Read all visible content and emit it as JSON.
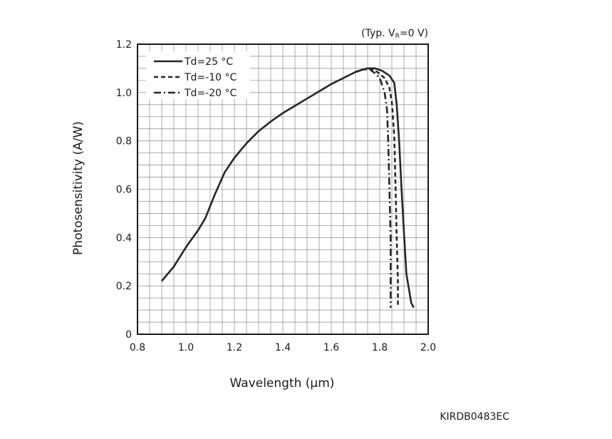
{
  "chart_data": {
    "type": "line",
    "condition_prefix": "(Typ. V",
    "condition_sub": "R",
    "condition_suffix": "=0 V)",
    "xlabel": "Wavelength (μm)",
    "ylabel": "Photosensitivity (A/W)",
    "xlim": [
      0.8,
      2.0
    ],
    "ylim": [
      0,
      1.2
    ],
    "x_ticks": [
      "0.8",
      "1.0",
      "1.2",
      "1.4",
      "1.6",
      "1.8",
      "2.0"
    ],
    "y_ticks": [
      "0",
      "0.2",
      "0.4",
      "0.6",
      "0.8",
      "1.0",
      "1.2"
    ],
    "grid": true,
    "legend_position": "top-left",
    "code": "KIRDB0483EC",
    "series": [
      {
        "name": "Td=25 °C",
        "style": "solid",
        "points": [
          [
            0.9,
            0.22
          ],
          [
            0.95,
            0.28
          ],
          [
            1.0,
            0.36
          ],
          [
            1.05,
            0.43
          ],
          [
            1.08,
            0.48
          ],
          [
            1.12,
            0.58
          ],
          [
            1.16,
            0.67
          ],
          [
            1.2,
            0.73
          ],
          [
            1.25,
            0.79
          ],
          [
            1.3,
            0.84
          ],
          [
            1.35,
            0.88
          ],
          [
            1.4,
            0.915
          ],
          [
            1.45,
            0.945
          ],
          [
            1.5,
            0.975
          ],
          [
            1.55,
            1.005
          ],
          [
            1.6,
            1.035
          ],
          [
            1.65,
            1.06
          ],
          [
            1.7,
            1.085
          ],
          [
            1.73,
            1.095
          ],
          [
            1.75,
            1.1
          ],
          [
            1.78,
            1.1
          ],
          [
            1.81,
            1.09
          ],
          [
            1.84,
            1.07
          ],
          [
            1.86,
            1.04
          ],
          [
            1.87,
            0.95
          ],
          [
            1.88,
            0.8
          ],
          [
            1.89,
            0.6
          ],
          [
            1.9,
            0.42
          ],
          [
            1.91,
            0.25
          ],
          [
            1.93,
            0.13
          ],
          [
            1.94,
            0.11
          ]
        ]
      },
      {
        "name": "Td=-10 °C",
        "style": "dashed",
        "points": [
          [
            1.7,
            1.085
          ],
          [
            1.73,
            1.095
          ],
          [
            1.76,
            1.1
          ],
          [
            1.79,
            1.085
          ],
          [
            1.82,
            1.06
          ],
          [
            1.84,
            1.02
          ],
          [
            1.85,
            0.96
          ],
          [
            1.86,
            0.82
          ],
          [
            1.865,
            0.62
          ],
          [
            1.87,
            0.4
          ],
          [
            1.875,
            0.22
          ],
          [
            1.875,
            0.11
          ]
        ]
      },
      {
        "name": "Td=-20 °C",
        "style": "dash-dot",
        "points": [
          [
            1.7,
            1.085
          ],
          [
            1.73,
            1.095
          ],
          [
            1.76,
            1.095
          ],
          [
            1.78,
            1.08
          ],
          [
            1.8,
            1.06
          ],
          [
            1.82,
            1.0
          ],
          [
            1.83,
            0.93
          ],
          [
            1.835,
            0.8
          ],
          [
            1.84,
            0.6
          ],
          [
            1.845,
            0.4
          ],
          [
            1.845,
            0.2
          ],
          [
            1.845,
            0.11
          ]
        ]
      }
    ]
  }
}
